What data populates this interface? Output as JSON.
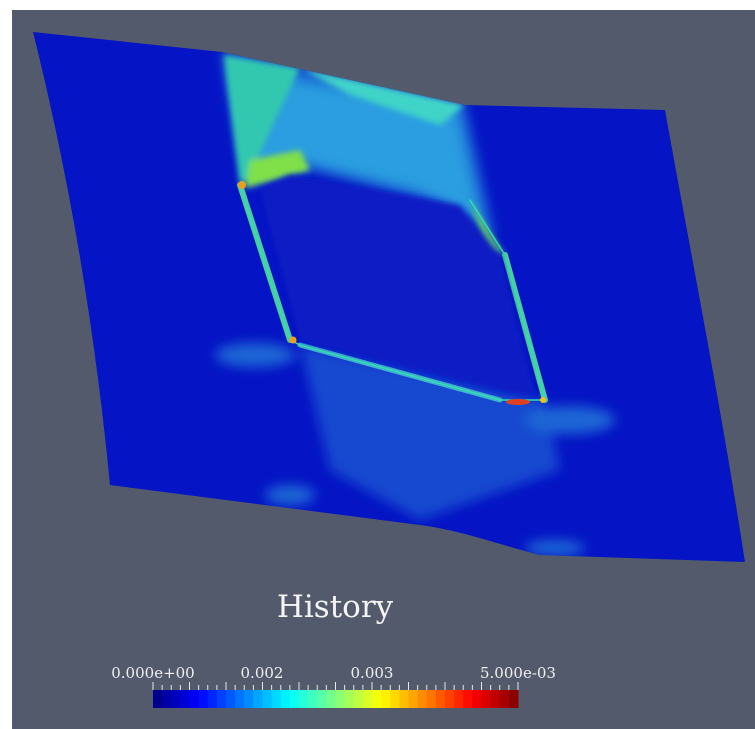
{
  "view": {
    "title": "History",
    "colorbar": {
      "labels": [
        "0.000e+00",
        "0.002",
        "0.003",
        "5.000e-03"
      ]
    }
  }
}
